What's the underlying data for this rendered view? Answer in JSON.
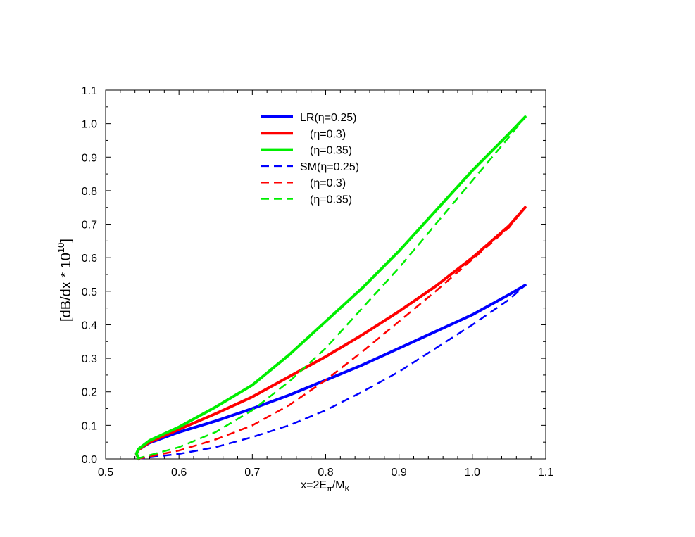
{
  "chart_data": {
    "type": "line",
    "xlabel": {
      "base": "x=2E",
      "sub1": "π",
      "mid": "/M",
      "sub2": "K"
    },
    "ylabel": {
      "base": "[dB/dx * 10",
      "sup": "10",
      "end": "]"
    },
    "xlim": [
      0.5,
      1.1
    ],
    "ylim": [
      0.0,
      1.1
    ],
    "x_ticks": [
      "0.5",
      "0.6",
      "0.7",
      "0.8",
      "0.9",
      "1.0",
      "1.1"
    ],
    "y_ticks": [
      "0.0",
      "0.1",
      "0.2",
      "0.3",
      "0.4",
      "0.5",
      "0.6",
      "0.7",
      "0.8",
      "0.9",
      "1.0",
      "1.1"
    ],
    "grid": false,
    "legend_position": "top-center",
    "series": [
      {
        "name": "LR(η=0.25)",
        "color": "#0000ff",
        "style": "solid",
        "x": [
          0.545,
          0.542,
          0.545,
          0.56,
          0.6,
          0.65,
          0.7,
          0.75,
          0.8,
          0.85,
          0.9,
          0.95,
          1.0,
          1.05,
          1.072
        ],
        "y": [
          0.0,
          0.015,
          0.028,
          0.048,
          0.08,
          0.113,
          0.15,
          0.19,
          0.235,
          0.28,
          0.33,
          0.38,
          0.43,
          0.49,
          0.518
        ]
      },
      {
        "name": "(η=0.3)",
        "color": "#ff0000",
        "style": "solid",
        "x": [
          0.545,
          0.542,
          0.545,
          0.56,
          0.6,
          0.65,
          0.7,
          0.75,
          0.8,
          0.85,
          0.9,
          0.95,
          1.0,
          1.05,
          1.072
        ],
        "y": [
          0.0,
          0.015,
          0.028,
          0.05,
          0.088,
          0.135,
          0.185,
          0.245,
          0.305,
          0.37,
          0.44,
          0.515,
          0.6,
          0.695,
          0.75
        ]
      },
      {
        "name": "(η=0.35)",
        "color": "#00ee00",
        "style": "solid",
        "x": [
          0.545,
          0.542,
          0.545,
          0.56,
          0.6,
          0.65,
          0.7,
          0.75,
          0.8,
          0.85,
          0.9,
          0.95,
          1.0,
          1.05,
          1.072
        ],
        "y": [
          0.0,
          0.016,
          0.03,
          0.055,
          0.095,
          0.155,
          0.22,
          0.31,
          0.41,
          0.51,
          0.62,
          0.74,
          0.86,
          0.97,
          1.02
        ]
      },
      {
        "name": "SM(η=0.25)",
        "color": "#0000ff",
        "style": "dashed",
        "x": [
          0.542,
          0.55,
          0.6,
          0.65,
          0.7,
          0.75,
          0.8,
          0.85,
          0.9,
          0.95,
          1.0,
          1.05,
          1.072
        ],
        "y": [
          0.0,
          0.002,
          0.015,
          0.035,
          0.065,
          0.1,
          0.145,
          0.2,
          0.26,
          0.33,
          0.4,
          0.475,
          0.518
        ]
      },
      {
        "name": "(η=0.3)",
        "color": "#ff0000",
        "style": "dashed",
        "x": [
          0.542,
          0.55,
          0.6,
          0.65,
          0.7,
          0.75,
          0.8,
          0.85,
          0.9,
          0.95,
          1.0,
          1.05,
          1.072
        ],
        "y": [
          0.0,
          0.003,
          0.025,
          0.058,
          0.1,
          0.16,
          0.235,
          0.32,
          0.41,
          0.5,
          0.595,
          0.69,
          0.75
        ]
      },
      {
        "name": "(η=0.35)",
        "color": "#00ee00",
        "style": "dashed",
        "x": [
          0.542,
          0.55,
          0.6,
          0.65,
          0.7,
          0.75,
          0.8,
          0.85,
          0.9,
          0.95,
          1.0,
          1.05,
          1.072
        ],
        "y": [
          0.0,
          0.005,
          0.035,
          0.08,
          0.145,
          0.23,
          0.33,
          0.45,
          0.57,
          0.7,
          0.83,
          0.96,
          1.02
        ]
      }
    ]
  }
}
